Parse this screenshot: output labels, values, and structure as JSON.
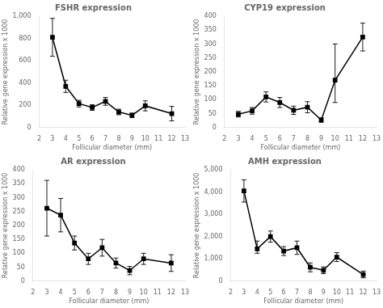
{
  "chart_data": [
    {
      "type": "line",
      "title": "FSHR expression",
      "xlabel": "Follicular diameter (mm)",
      "ylabel": "Relative gene expression x 1000",
      "x": [
        3,
        4,
        5,
        6,
        7,
        8,
        9,
        10,
        12
      ],
      "values": [
        810,
        370,
        215,
        180,
        235,
        140,
        110,
        195,
        125
      ],
      "yerr_lo": [
        170,
        55,
        30,
        25,
        35,
        25,
        20,
        45,
        65
      ],
      "yerr_hi": [
        170,
        55,
        30,
        25,
        35,
        25,
        20,
        45,
        65
      ],
      "xlim": [
        2,
        13
      ],
      "xticks": [
        2,
        3,
        4,
        5,
        6,
        7,
        8,
        9,
        10,
        11,
        12,
        13
      ],
      "ylim": [
        0,
        1000
      ],
      "yticks": [
        0,
        200,
        400,
        600,
        800,
        1000
      ],
      "color": "#000000",
      "marker": "square",
      "grid": false
    },
    {
      "type": "line",
      "title": "CYP19 expression",
      "xlabel": "Follicular diameter (mm)",
      "ylabel": "Relative gene expression x 1000",
      "x": [
        3,
        4,
        5,
        6,
        7,
        8,
        9,
        10,
        12
      ],
      "values": [
        48,
        60,
        110,
        90,
        62,
        73,
        27,
        170,
        325
      ],
      "yerr_lo": [
        10,
        12,
        18,
        18,
        15,
        20,
        8,
        80,
        50
      ],
      "yerr_hi": [
        10,
        12,
        18,
        18,
        15,
        20,
        8,
        130,
        50
      ],
      "xlim": [
        2,
        13
      ],
      "xticks": [
        2,
        3,
        4,
        5,
        6,
        7,
        8,
        9,
        10,
        11,
        12,
        13
      ],
      "ylim": [
        0,
        400
      ],
      "yticks": [
        0,
        50,
        100,
        150,
        200,
        250,
        300,
        350,
        400
      ],
      "color": "#000000",
      "marker": "square",
      "grid": false
    },
    {
      "type": "line",
      "title": "AR expression",
      "xlabel": "Follicular diameter (mm)",
      "ylabel": "Relative gene expression x 1000",
      "x": [
        3,
        4,
        5,
        6,
        7,
        8,
        9,
        10,
        12
      ],
      "values": [
        262,
        237,
        137,
        80,
        120,
        65,
        38,
        80,
        65
      ],
      "yerr_lo": [
        100,
        60,
        25,
        20,
        30,
        18,
        15,
        20,
        30
      ],
      "yerr_hi": [
        100,
        60,
        25,
        20,
        30,
        18,
        15,
        20,
        30
      ],
      "xlim": [
        2,
        13
      ],
      "xticks": [
        2,
        3,
        4,
        5,
        6,
        7,
        8,
        9,
        10,
        11,
        12,
        13
      ],
      "ylim": [
        0,
        400
      ],
      "yticks": [
        0,
        50,
        100,
        150,
        200,
        250,
        300,
        350,
        400
      ],
      "color": "#000000",
      "marker": "square",
      "grid": false
    },
    {
      "type": "line",
      "title": "AMH expression",
      "xlabel": "Follicular diameter (mm)",
      "ylabel": "Relative gene expression x 1000",
      "x": [
        3,
        4,
        5,
        6,
        7,
        8,
        9,
        10,
        12
      ],
      "values": [
        4050,
        1450,
        2000,
        1350,
        1500,
        620,
        490,
        1080,
        300
      ],
      "yerr_lo": [
        500,
        200,
        250,
        200,
        300,
        200,
        150,
        200,
        150
      ],
      "yerr_hi": [
        500,
        350,
        250,
        200,
        300,
        200,
        150,
        200,
        150
      ],
      "xlim": [
        2,
        13
      ],
      "xticks": [
        2,
        3,
        4,
        5,
        6,
        7,
        8,
        9,
        10,
        11,
        12,
        13
      ],
      "ylim": [
        0,
        5000
      ],
      "yticks": [
        0,
        1000,
        2000,
        3000,
        4000,
        5000
      ],
      "color": "#000000",
      "marker": "square",
      "grid": false
    }
  ]
}
